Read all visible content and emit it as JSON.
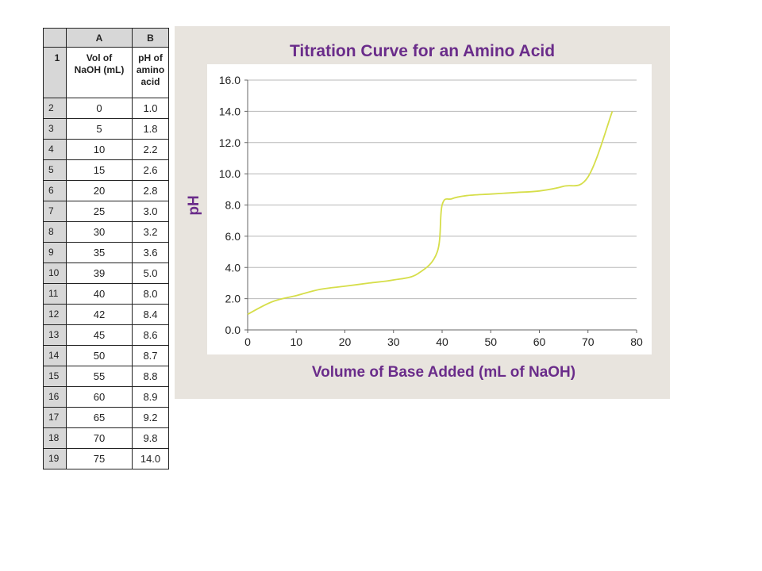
{
  "table": {
    "col_headers": [
      "A",
      "B"
    ],
    "header_row": {
      "row": "1",
      "a": "Vol of NaOH (mL)",
      "b": "pH of amino acid"
    },
    "rows": [
      {
        "n": "2",
        "vol": "0",
        "ph": "1.0"
      },
      {
        "n": "3",
        "vol": "5",
        "ph": "1.8"
      },
      {
        "n": "4",
        "vol": "10",
        "ph": "2.2"
      },
      {
        "n": "5",
        "vol": "15",
        "ph": "2.6"
      },
      {
        "n": "6",
        "vol": "20",
        "ph": "2.8"
      },
      {
        "n": "7",
        "vol": "25",
        "ph": "3.0"
      },
      {
        "n": "8",
        "vol": "30",
        "ph": "3.2"
      },
      {
        "n": "9",
        "vol": "35",
        "ph": "3.6"
      },
      {
        "n": "10",
        "vol": "39",
        "ph": "5.0"
      },
      {
        "n": "11",
        "vol": "40",
        "ph": "8.0"
      },
      {
        "n": "12",
        "vol": "42",
        "ph": "8.4"
      },
      {
        "n": "13",
        "vol": "45",
        "ph": "8.6"
      },
      {
        "n": "14",
        "vol": "50",
        "ph": "8.7"
      },
      {
        "n": "15",
        "vol": "55",
        "ph": "8.8"
      },
      {
        "n": "16",
        "vol": "60",
        "ph": "8.9"
      },
      {
        "n": "17",
        "vol": "65",
        "ph": "9.2"
      },
      {
        "n": "18",
        "vol": "70",
        "ph": "9.8"
      },
      {
        "n": "19",
        "vol": "75",
        "ph": "14.0"
      }
    ]
  },
  "chart_data": {
    "type": "line",
    "title": "Titration Curve for an Amino Acid",
    "xlabel": "Volume of Base Added (mL of NaOH)",
    "ylabel": "pH",
    "xlim": [
      0,
      80
    ],
    "ylim": [
      0,
      16
    ],
    "xticks": [
      0,
      10,
      20,
      30,
      40,
      50,
      60,
      70,
      80
    ],
    "yticks": [
      "0.0",
      "2.0",
      "4.0",
      "6.0",
      "8.0",
      "10.0",
      "12.0",
      "14.0",
      "16.0"
    ],
    "grid": "horizontal",
    "series": [
      {
        "color": "#d6de4a",
        "x": [
          0,
          5,
          10,
          15,
          20,
          25,
          30,
          35,
          39,
          40,
          42,
          45,
          50,
          55,
          60,
          65,
          70,
          75
        ],
        "y": [
          1.0,
          1.8,
          2.2,
          2.6,
          2.8,
          3.0,
          3.2,
          3.6,
          5.0,
          8.0,
          8.4,
          8.6,
          8.7,
          8.8,
          8.9,
          9.2,
          9.8,
          14.0
        ]
      }
    ]
  },
  "colors": {
    "title": "#6a2c8a",
    "panel_bg": "#e8e4de",
    "line": "#d6de4a",
    "grid": "#b8b8b8"
  }
}
